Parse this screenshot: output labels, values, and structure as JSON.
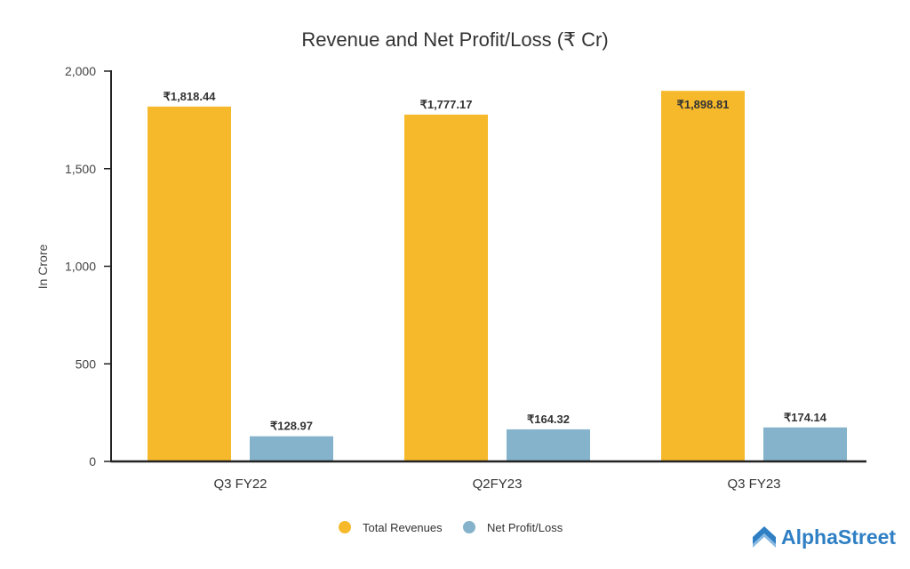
{
  "chart_data": {
    "type": "bar",
    "title": "Revenue and Net Profit/Loss (₹ Cr)",
    "xlabel": "",
    "ylabel": "In Crore",
    "ylim": [
      0,
      2000
    ],
    "yticks": [
      0,
      500,
      1000,
      1500,
      2000
    ],
    "ytick_labels": [
      "0",
      "500",
      "1,000",
      "1,500",
      "2,000"
    ],
    "categories": [
      "Q3 FY22",
      "Q2FY23",
      "Q3 FY23"
    ],
    "series": [
      {
        "name": "Total Revenues",
        "color": "#f6b92b",
        "values": [
          1818.44,
          1777.17,
          1898.81
        ],
        "labels": [
          "₹1,818.44",
          "₹1,777.17",
          "₹1,898.81"
        ]
      },
      {
        "name": "Net Profit/Loss",
        "color": "#84b3cb",
        "values": [
          128.97,
          164.32,
          174.14
        ],
        "labels": [
          "₹128.97",
          "₹164.32",
          "₹174.14"
        ]
      }
    ],
    "grid": false,
    "legend": "bottom-center"
  },
  "brand": {
    "logo_text": "AlphaStreet",
    "color": "#2f7fc4"
  }
}
